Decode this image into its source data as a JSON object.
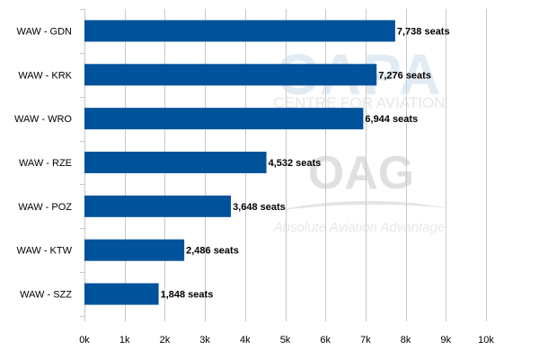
{
  "chart_data": {
    "type": "bar",
    "orientation": "horizontal",
    "categories": [
      "WAW - GDN",
      "WAW - KRK",
      "WAW - WRO",
      "WAW - RZE",
      "WAW - POZ",
      "WAW - KTW",
      "WAW - SZZ"
    ],
    "values": [
      7738,
      7276,
      6944,
      4532,
      3648,
      2486,
      1848
    ],
    "data_labels": [
      "7,738 seats",
      "7,276 seats",
      "6,944 seats",
      "4,532 seats",
      "3,648 seats",
      "2,486 seats",
      "1,848 seats"
    ],
    "x_ticks": [
      0,
      1000,
      2000,
      3000,
      4000,
      5000,
      6000,
      7000,
      8000,
      9000,
      10000
    ],
    "x_tick_labels": [
      "0k",
      "1k",
      "2k",
      "3k",
      "4k",
      "5k",
      "6k",
      "7k",
      "8k",
      "9k",
      "10k"
    ],
    "xlim": [
      0,
      10000
    ],
    "grid": true,
    "title": "",
    "xlabel": "",
    "ylabel": "",
    "bar_color": "#00529b"
  },
  "watermarks": {
    "capa_logo": "CAPA",
    "capa_subtitle": "CENTRE FOR AVIATION",
    "oag_logo": "OAG",
    "oag_tagline": "Absolute Aviation Advantage"
  }
}
